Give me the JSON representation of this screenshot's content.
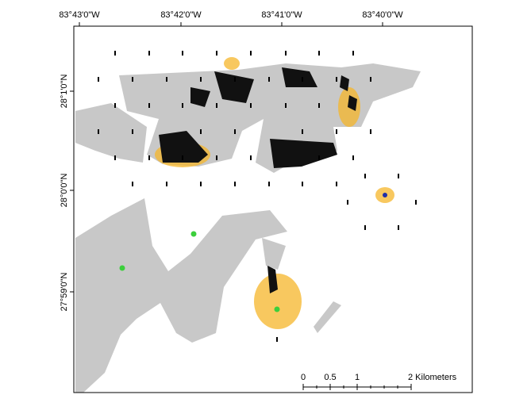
{
  "map": {
    "longitude_labels": [
      "83°43'0\"W",
      "83°42'0\"W",
      "83°41'0\"W",
      "83°40'0\"W"
    ],
    "latitude_labels": [
      "28°1'0\"N",
      "28°0'0\"N",
      "27°59'0\"N"
    ],
    "scale_bar": {
      "labels": [
        "0",
        "0.5",
        "1",
        "2 Kilometers"
      ]
    }
  }
}
